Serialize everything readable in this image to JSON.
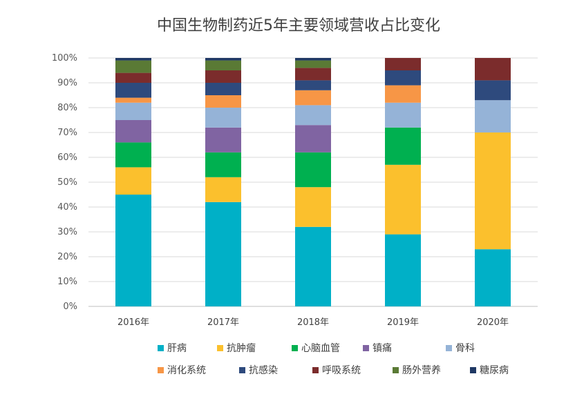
{
  "chart_data": {
    "type": "bar",
    "stacked": true,
    "percent_stacked": true,
    "title": "中国生物制药近5年主要领域营收占比变化",
    "xlabel": "",
    "ylabel": "",
    "ylim": [
      0,
      100
    ],
    "yticks": [
      "0%",
      "10%",
      "20%",
      "30%",
      "40%",
      "50%",
      "60%",
      "70%",
      "80%",
      "90%",
      "100%"
    ],
    "categories": [
      "2016年",
      "2017年",
      "2018年",
      "2019年",
      "2020年"
    ],
    "legend_position": "bottom",
    "grid": true,
    "series": [
      {
        "name": "肝病",
        "color": "#00B0C7",
        "values": [
          45,
          42,
          32,
          29,
          23
        ]
      },
      {
        "name": "抗肿瘤",
        "color": "#FBC02D",
        "values": [
          11,
          10,
          16,
          28,
          47
        ]
      },
      {
        "name": "心脑血管",
        "color": "#00B050",
        "values": [
          10,
          10,
          14,
          15,
          0
        ]
      },
      {
        "name": "镇痛",
        "color": "#8064A2",
        "values": [
          9,
          10,
          11,
          0,
          0
        ]
      },
      {
        "name": "骨科",
        "color": "#95B3D7",
        "values": [
          7,
          8,
          8,
          10,
          13
        ]
      },
      {
        "name": "消化系统",
        "color": "#F79646",
        "values": [
          2,
          5,
          6,
          7,
          0
        ]
      },
      {
        "name": "抗感染",
        "color": "#2E4A7D",
        "values": [
          6,
          5,
          4,
          6,
          8
        ]
      },
      {
        "name": "呼吸系统",
        "color": "#7B2C2C",
        "values": [
          4,
          5,
          5,
          5,
          9
        ]
      },
      {
        "name": "肠外营养",
        "color": "#5A7A35",
        "values": [
          5,
          4,
          3,
          0,
          0
        ]
      },
      {
        "name": "糖尿病",
        "color": "#1F3864",
        "values": [
          1,
          1,
          1,
          0,
          0
        ]
      }
    ]
  }
}
